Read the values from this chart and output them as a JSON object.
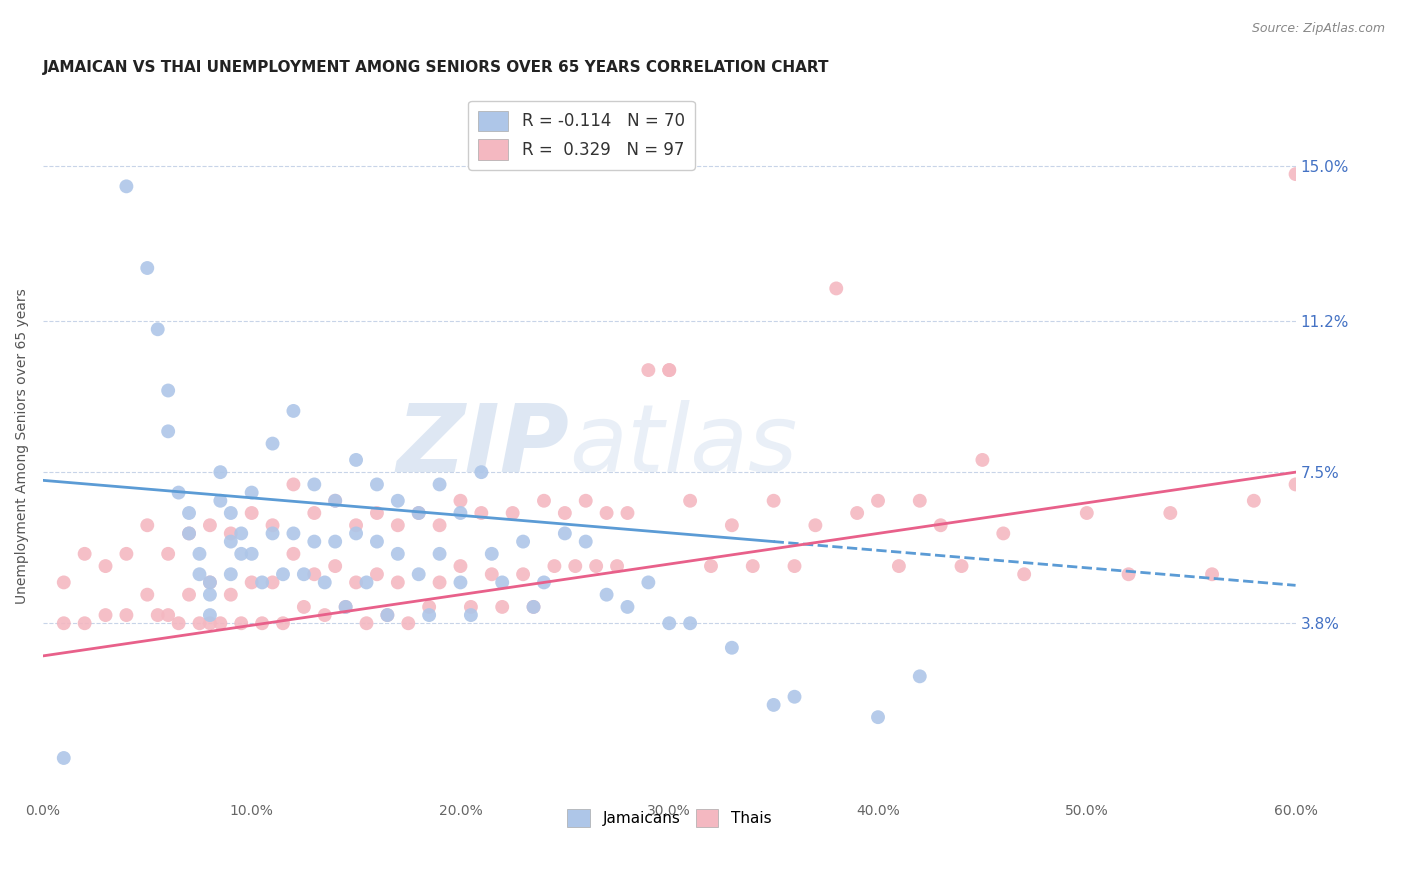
{
  "title": "JAMAICAN VS THAI UNEMPLOYMENT AMONG SENIORS OVER 65 YEARS CORRELATION CHART",
  "source": "Source: ZipAtlas.com",
  "ylabel": "Unemployment Among Seniors over 65 years",
  "xlabel": "",
  "xlim": [
    0.0,
    0.6
  ],
  "ylim": [
    -0.005,
    0.168
  ],
  "xtick_labels": [
    "0.0%",
    "10.0%",
    "20.0%",
    "30.0%",
    "40.0%",
    "50.0%",
    "60.0%"
  ],
  "xtick_vals": [
    0.0,
    0.1,
    0.2,
    0.3,
    0.4,
    0.5,
    0.6
  ],
  "ytick_labels": [
    "3.8%",
    "7.5%",
    "11.2%",
    "15.0%"
  ],
  "ytick_vals": [
    0.038,
    0.075,
    0.112,
    0.15
  ],
  "legend_entries": [
    {
      "label": "R = -0.114   N = 70",
      "color": "#aec6e8"
    },
    {
      "label": "R =  0.329   N = 97",
      "color": "#f4b8c1"
    }
  ],
  "watermark_zip": "ZIP",
  "watermark_atlas": "atlas",
  "jamaican_color": "#aec6e8",
  "thai_color": "#f4b8c1",
  "jamaican_line_color": "#5b9bd5",
  "thai_line_color": "#e8608a",
  "background_color": "#ffffff",
  "grid_color": "#c8d4e8",
  "title_fontsize": 11,
  "axis_label_fontsize": 10,
  "tick_fontsize": 10,
  "jamaican_x": [
    0.01,
    0.04,
    0.05,
    0.055,
    0.06,
    0.06,
    0.065,
    0.07,
    0.07,
    0.075,
    0.075,
    0.08,
    0.08,
    0.08,
    0.085,
    0.085,
    0.09,
    0.09,
    0.09,
    0.095,
    0.095,
    0.1,
    0.1,
    0.105,
    0.11,
    0.11,
    0.115,
    0.12,
    0.12,
    0.125,
    0.13,
    0.13,
    0.135,
    0.14,
    0.14,
    0.145,
    0.15,
    0.15,
    0.155,
    0.16,
    0.16,
    0.165,
    0.17,
    0.17,
    0.18,
    0.18,
    0.185,
    0.19,
    0.19,
    0.2,
    0.2,
    0.205,
    0.21,
    0.215,
    0.22,
    0.23,
    0.235,
    0.24,
    0.25,
    0.26,
    0.27,
    0.28,
    0.29,
    0.3,
    0.31,
    0.33,
    0.35,
    0.36,
    0.4,
    0.42
  ],
  "jamaican_y": [
    0.005,
    0.145,
    0.125,
    0.11,
    0.095,
    0.085,
    0.07,
    0.065,
    0.06,
    0.055,
    0.05,
    0.048,
    0.045,
    0.04,
    0.075,
    0.068,
    0.065,
    0.058,
    0.05,
    0.06,
    0.055,
    0.07,
    0.055,
    0.048,
    0.082,
    0.06,
    0.05,
    0.09,
    0.06,
    0.05,
    0.072,
    0.058,
    0.048,
    0.068,
    0.058,
    0.042,
    0.078,
    0.06,
    0.048,
    0.072,
    0.058,
    0.04,
    0.068,
    0.055,
    0.065,
    0.05,
    0.04,
    0.072,
    0.055,
    0.065,
    0.048,
    0.04,
    0.075,
    0.055,
    0.048,
    0.058,
    0.042,
    0.048,
    0.06,
    0.058,
    0.045,
    0.042,
    0.048,
    0.038,
    0.038,
    0.032,
    0.018,
    0.02,
    0.015,
    0.025
  ],
  "thai_x": [
    0.01,
    0.01,
    0.02,
    0.02,
    0.03,
    0.03,
    0.04,
    0.04,
    0.05,
    0.05,
    0.055,
    0.06,
    0.06,
    0.065,
    0.07,
    0.07,
    0.075,
    0.08,
    0.08,
    0.08,
    0.085,
    0.09,
    0.09,
    0.095,
    0.1,
    0.1,
    0.105,
    0.11,
    0.11,
    0.115,
    0.12,
    0.12,
    0.125,
    0.13,
    0.13,
    0.135,
    0.14,
    0.14,
    0.145,
    0.15,
    0.15,
    0.155,
    0.16,
    0.16,
    0.165,
    0.17,
    0.17,
    0.175,
    0.18,
    0.185,
    0.19,
    0.19,
    0.2,
    0.2,
    0.205,
    0.21,
    0.215,
    0.22,
    0.225,
    0.23,
    0.235,
    0.24,
    0.245,
    0.25,
    0.255,
    0.26,
    0.265,
    0.27,
    0.275,
    0.28,
    0.29,
    0.3,
    0.3,
    0.31,
    0.32,
    0.33,
    0.34,
    0.35,
    0.36,
    0.37,
    0.38,
    0.39,
    0.4,
    0.41,
    0.42,
    0.43,
    0.44,
    0.45,
    0.46,
    0.47,
    0.5,
    0.52,
    0.54,
    0.56,
    0.58,
    0.6,
    0.6
  ],
  "thai_y": [
    0.048,
    0.038,
    0.055,
    0.038,
    0.052,
    0.04,
    0.055,
    0.04,
    0.062,
    0.045,
    0.04,
    0.055,
    0.04,
    0.038,
    0.06,
    0.045,
    0.038,
    0.062,
    0.048,
    0.038,
    0.038,
    0.06,
    0.045,
    0.038,
    0.065,
    0.048,
    0.038,
    0.062,
    0.048,
    0.038,
    0.072,
    0.055,
    0.042,
    0.065,
    0.05,
    0.04,
    0.068,
    0.052,
    0.042,
    0.062,
    0.048,
    0.038,
    0.065,
    0.05,
    0.04,
    0.062,
    0.048,
    0.038,
    0.065,
    0.042,
    0.062,
    0.048,
    0.068,
    0.052,
    0.042,
    0.065,
    0.05,
    0.042,
    0.065,
    0.05,
    0.042,
    0.068,
    0.052,
    0.065,
    0.052,
    0.068,
    0.052,
    0.065,
    0.052,
    0.065,
    0.1,
    0.1,
    0.1,
    0.068,
    0.052,
    0.062,
    0.052,
    0.068,
    0.052,
    0.062,
    0.12,
    0.065,
    0.068,
    0.052,
    0.068,
    0.062,
    0.052,
    0.078,
    0.06,
    0.05,
    0.065,
    0.05,
    0.065,
    0.05,
    0.068,
    0.148,
    0.072
  ]
}
